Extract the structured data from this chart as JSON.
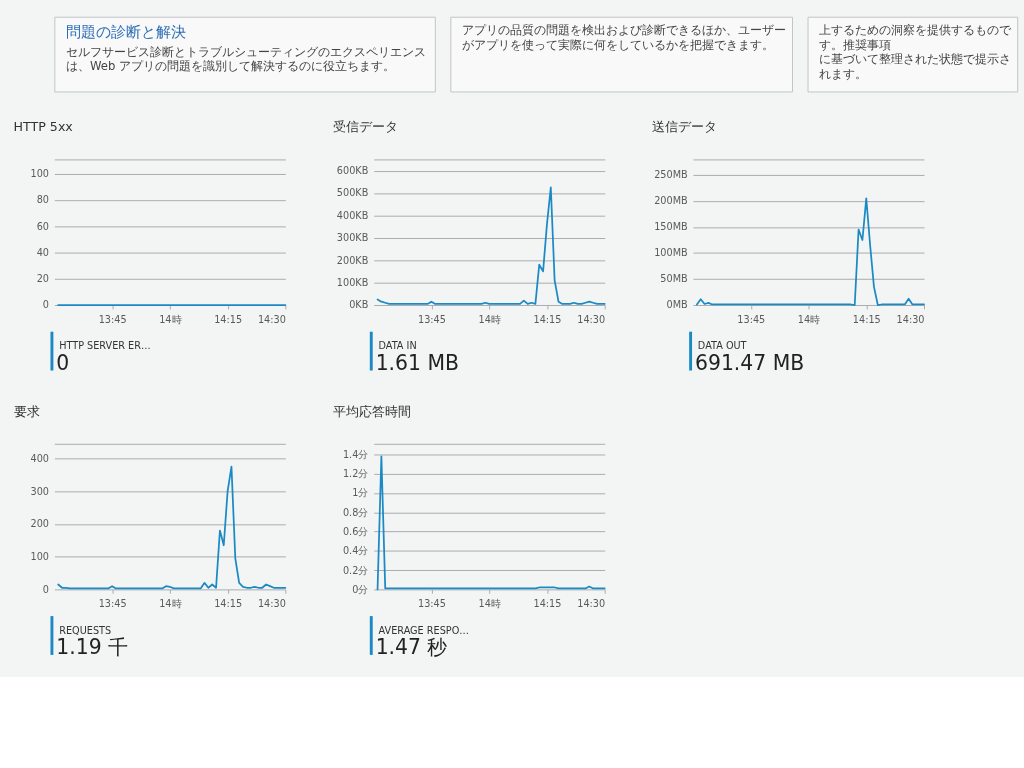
{
  "chart_data": [
    {
      "type": "other",
      "title": "問題の診断と解決",
      "annotations": [
        "セルフサービス診断とトラブルシューティングのエクスペリエンスは、Web アプリの問題を識別して解決するのに役立ちます。"
      ]
    },
    {
      "type": "other",
      "annotations": [
        "アプリの品質の問題を検出および診断できるほか、ユーザーがアプリを使って実際に何をしているかを把握できます。"
      ]
    },
    {
      "type": "other",
      "annotations": [
        "上するための洞察を提供するものです。推奨事項",
        "に基づいて整理された状態で提示されます。"
      ]
    },
    {
      "type": "line",
      "title": "HTTP 5xx",
      "x": [
        13.5167,
        13.5333,
        13.55,
        13.5667,
        13.5833,
        13.6,
        13.6167,
        13.6333,
        13.65,
        13.6667,
        13.6833,
        13.7,
        13.7167,
        13.7333,
        13.75,
        13.7667,
        13.7833,
        13.8,
        13.8167,
        13.8333,
        13.85,
        13.8667,
        13.8833,
        13.9,
        13.9167,
        13.9333,
        13.95,
        13.9667,
        13.9833,
        14.0,
        14.0167,
        14.0333,
        14.05,
        14.0667,
        14.0833,
        14.1,
        14.1167,
        14.1333,
        14.15,
        14.1667,
        14.1833,
        14.2,
        14.2167,
        14.2333,
        14.25,
        14.2667,
        14.2833,
        14.3,
        14.3167,
        14.3333,
        14.35,
        14.3667,
        14.3833,
        14.4,
        14.4167,
        14.4333,
        14.45,
        14.4667,
        14.4833,
        14.5
      ],
      "xlim": [
        13.5,
        14.5
      ],
      "xticks": [
        {
          "value": 13.75,
          "label": "13:45"
        },
        {
          "value": 14,
          "label": "14時"
        },
        {
          "value": 14.25,
          "label": "14:15"
        },
        {
          "value": 14.5,
          "label": "14:30"
        }
      ],
      "ylim": [
        0,
        111
      ],
      "yticks": [
        0,
        20,
        40,
        60,
        80,
        100
      ],
      "series": [
        {
          "name": "HTTP SERVER ER…",
          "color": "#1b8ac4",
          "values": [
            0,
            0,
            0,
            0,
            0,
            0,
            0,
            0,
            0,
            0,
            0,
            0,
            0,
            0,
            0,
            0,
            0,
            0,
            0,
            0,
            0,
            0,
            0,
            0,
            0,
            0,
            0,
            0,
            0,
            0,
            0,
            0,
            0,
            0,
            0,
            0,
            0,
            0,
            0,
            0,
            0,
            0,
            0,
            0,
            0,
            0,
            0,
            0,
            0,
            0,
            0,
            0,
            0,
            0,
            0,
            0,
            0,
            0,
            0,
            0
          ]
        }
      ],
      "annotations": [
        "0"
      ],
      "grid": "y",
      "legend": "bottom left"
    },
    {
      "type": "line",
      "title": "受信データ",
      "x": [
        13.5167,
        13.5333,
        13.55,
        13.5667,
        13.5833,
        13.6,
        13.6167,
        13.6333,
        13.65,
        13.6667,
        13.6833,
        13.7,
        13.7167,
        13.7333,
        13.75,
        13.7667,
        13.7833,
        13.8,
        13.8167,
        13.8333,
        13.85,
        13.8667,
        13.8833,
        13.9,
        13.9167,
        13.9333,
        13.95,
        13.9667,
        13.9833,
        14.0,
        14.0167,
        14.0333,
        14.05,
        14.0667,
        14.0833,
        14.1,
        14.1167,
        14.1333,
        14.15,
        14.1667,
        14.1833,
        14.2,
        14.2167,
        14.2333,
        14.25,
        14.2667,
        14.2833,
        14.3,
        14.3167,
        14.3333,
        14.35,
        14.3667,
        14.3833,
        14.4,
        14.4167,
        14.4333,
        14.45,
        14.4667,
        14.4833,
        14.5
      ],
      "xlim": [
        13.5,
        14.5
      ],
      "xticks": [
        {
          "value": 13.75,
          "label": "13:45"
        },
        {
          "value": 14,
          "label": "14時"
        },
        {
          "value": 14.25,
          "label": "14:15"
        },
        {
          "value": 14.5,
          "label": "14:30"
        }
      ],
      "ylim": [
        0,
        650
      ],
      "yticks": [
        {
          "value": 0,
          "label": "0KB"
        },
        {
          "value": 100,
          "label": "100KB"
        },
        {
          "value": 200,
          "label": "200KB"
        },
        {
          "value": 300,
          "label": "300KB"
        },
        {
          "value": 400,
          "label": "400KB"
        },
        {
          "value": 500,
          "label": "500KB"
        },
        {
          "value": 600,
          "label": "600KB"
        }
      ],
      "series": [
        {
          "name": "DATA IN",
          "color": "#1b8ac4",
          "values": [
            25,
            15,
            10,
            5,
            5,
            5,
            5,
            5,
            5,
            5,
            5,
            5,
            5,
            5,
            15,
            5,
            5,
            5,
            5,
            5,
            5,
            5,
            5,
            5,
            5,
            5,
            5,
            5,
            10,
            5,
            5,
            5,
            5,
            5,
            5,
            5,
            5,
            5,
            20,
            5,
            10,
            5,
            180,
            150,
            360,
            525,
            110,
            15,
            5,
            5,
            5,
            10,
            5,
            5,
            10,
            15,
            10,
            5,
            5,
            5
          ]
        }
      ],
      "annotations": [
        "1.61 MB"
      ],
      "grid": "y",
      "legend": "bottom left"
    },
    {
      "type": "line",
      "title": "送信データ",
      "x": [
        13.5167,
        13.5333,
        13.55,
        13.5667,
        13.5833,
        13.6,
        13.6167,
        13.6333,
        13.65,
        13.6667,
        13.6833,
        13.7,
        13.7167,
        13.7333,
        13.75,
        13.7667,
        13.7833,
        13.8,
        13.8167,
        13.8333,
        13.85,
        13.8667,
        13.8833,
        13.9,
        13.9167,
        13.9333,
        13.95,
        13.9667,
        13.9833,
        14.0,
        14.0167,
        14.0333,
        14.05,
        14.0667,
        14.0833,
        14.1,
        14.1167,
        14.1333,
        14.15,
        14.1667,
        14.1833,
        14.2,
        14.2167,
        14.2333,
        14.25,
        14.2667,
        14.2833,
        14.3,
        14.3167,
        14.3333,
        14.35,
        14.3667,
        14.3833,
        14.4,
        14.4167,
        14.4333,
        14.45,
        14.4667,
        14.4833,
        14.5
      ],
      "xlim": [
        13.5,
        14.5
      ],
      "xticks": [
        {
          "value": 13.75,
          "label": "13:45"
        },
        {
          "value": 14,
          "label": "14時"
        },
        {
          "value": 14.25,
          "label": "14:15"
        },
        {
          "value": 14.5,
          "label": "14:30"
        }
      ],
      "ylim": [
        0,
        280
      ],
      "yticks": [
        {
          "value": 0,
          "label": "0MB"
        },
        {
          "value": 50,
          "label": "50MB"
        },
        {
          "value": 100,
          "label": "100MB"
        },
        {
          "value": 150,
          "label": "150MB"
        },
        {
          "value": 200,
          "label": "200MB"
        },
        {
          "value": 250,
          "label": "250MB"
        }
      ],
      "series": [
        {
          "name": "DATA OUT",
          "color": "#1b8ac4",
          "values": [
            1,
            11,
            2,
            4,
            1,
            1,
            1,
            1,
            1,
            1,
            1,
            1,
            1,
            1,
            1,
            1,
            1,
            1,
            1,
            1,
            1,
            1,
            1,
            1,
            1,
            1,
            1,
            1,
            1,
            1,
            1,
            1,
            1,
            1,
            1,
            1,
            1,
            1,
            1,
            1,
            1,
            0,
            145,
            125,
            205,
            115,
            35,
            0,
            1,
            1,
            1,
            1,
            1,
            1,
            1,
            12,
            1,
            1,
            1,
            1
          ]
        }
      ],
      "annotations": [
        "691.47 MB"
      ],
      "grid": "y",
      "legend": "bottom left"
    },
    {
      "type": "line",
      "title": "要求",
      "x": [
        13.5167,
        13.5333,
        13.55,
        13.5667,
        13.5833,
        13.6,
        13.6167,
        13.6333,
        13.65,
        13.6667,
        13.6833,
        13.7,
        13.7167,
        13.7333,
        13.75,
        13.7667,
        13.7833,
        13.8,
        13.8167,
        13.8333,
        13.85,
        13.8667,
        13.8833,
        13.9,
        13.9167,
        13.9333,
        13.95,
        13.9667,
        13.9833,
        14.0,
        14.0167,
        14.0333,
        14.05,
        14.0667,
        14.0833,
        14.1,
        14.1167,
        14.1333,
        14.15,
        14.1667,
        14.1833,
        14.2,
        14.2167,
        14.2333,
        14.25,
        14.2667,
        14.2833,
        14.3,
        14.3167,
        14.3333,
        14.35,
        14.3667,
        14.3833,
        14.4,
        14.4167,
        14.4333,
        14.45,
        14.4667,
        14.4833,
        14.5
      ],
      "xlim": [
        13.5,
        14.5
      ],
      "xticks": [
        {
          "value": 13.75,
          "label": "13:45"
        },
        {
          "value": 14,
          "label": "14時"
        },
        {
          "value": 14.25,
          "label": "14:15"
        },
        {
          "value": 14.5,
          "label": "14:30"
        }
      ],
      "ylim": [
        0,
        445
      ],
      "yticks": [
        0,
        100,
        200,
        300,
        400
      ],
      "series": [
        {
          "name": "REQUESTS",
          "color": "#1b8ac4",
          "values": [
            15,
            5,
            5,
            3,
            3,
            3,
            3,
            3,
            3,
            3,
            3,
            3,
            3,
            3,
            10,
            3,
            3,
            3,
            3,
            3,
            3,
            3,
            3,
            3,
            3,
            3,
            3,
            3,
            10,
            8,
            3,
            3,
            3,
            3,
            3,
            3,
            3,
            3,
            20,
            5,
            15,
            5,
            180,
            135,
            300,
            375,
            95,
            20,
            8,
            5,
            5,
            8,
            5,
            5,
            15,
            10,
            5,
            5,
            5,
            5
          ]
        }
      ],
      "annotations": [
        "1.19 千"
      ],
      "grid": "y",
      "legend": "bottom left"
    },
    {
      "type": "line",
      "title": "平均応答時間",
      "x": [
        13.5167,
        13.5333,
        13.55,
        13.5667,
        13.5833,
        13.6,
        13.6167,
        13.6333,
        13.65,
        13.6667,
        13.6833,
        13.7,
        13.7167,
        13.7333,
        13.75,
        13.7667,
        13.7833,
        13.8,
        13.8167,
        13.8333,
        13.85,
        13.8667,
        13.8833,
        13.9,
        13.9167,
        13.9333,
        13.95,
        13.9667,
        13.9833,
        14.0,
        14.0167,
        14.0333,
        14.05,
        14.0667,
        14.0833,
        14.1,
        14.1167,
        14.1333,
        14.15,
        14.1667,
        14.1833,
        14.2,
        14.2167,
        14.2333,
        14.25,
        14.2667,
        14.2833,
        14.3,
        14.3167,
        14.3333,
        14.35,
        14.3667,
        14.3833,
        14.4,
        14.4167,
        14.4333,
        14.45,
        14.4667,
        14.4833,
        14.5
      ],
      "xlim": [
        13.5,
        14.5
      ],
      "xticks": [
        {
          "value": 13.75,
          "label": "13:45"
        },
        {
          "value": 14,
          "label": "14時"
        },
        {
          "value": 14.25,
          "label": "14:15"
        },
        {
          "value": 14.5,
          "label": "14:30"
        }
      ],
      "ylim": [
        0,
        1.51
      ],
      "yticks": [
        {
          "value": 0,
          "label": "0分"
        },
        {
          "value": 0.2,
          "label": "0.2分"
        },
        {
          "value": 0.4,
          "label": "0.4分"
        },
        {
          "value": 0.6,
          "label": "0.6分"
        },
        {
          "value": 0.8,
          "label": "0.8分"
        },
        {
          "value": 1,
          "label": "1分"
        },
        {
          "value": 1.2,
          "label": "1.2分"
        },
        {
          "value": 1.4,
          "label": "1.4分"
        }
      ],
      "series": [
        {
          "name": "AVERAGE RESPO…",
          "color": "#1b8ac4",
          "values": [
            0,
            1.38,
            0.01,
            0.01,
            0.01,
            0.01,
            0.01,
            0.01,
            0.01,
            0.01,
            0.01,
            0.01,
            0.01,
            0.01,
            0.01,
            0.01,
            0.01,
            0.01,
            0.01,
            0.01,
            0.01,
            0.01,
            0.01,
            0.01,
            0.01,
            0.01,
            0.01,
            0.01,
            0.01,
            0.01,
            0.01,
            0.01,
            0.01,
            0.01,
            0.01,
            0.01,
            0.01,
            0.01,
            0.01,
            0.01,
            0.01,
            0.01,
            0.02,
            0.02,
            0.02,
            0.02,
            0.02,
            0.01,
            0.01,
            0.01,
            0.01,
            0.01,
            0.01,
            0.01,
            0.01,
            0.03,
            0.01,
            0.01,
            0.01,
            0.01
          ]
        }
      ],
      "annotations": [
        "1.47 秒"
      ],
      "grid": "y",
      "legend": "bottom left"
    }
  ]
}
